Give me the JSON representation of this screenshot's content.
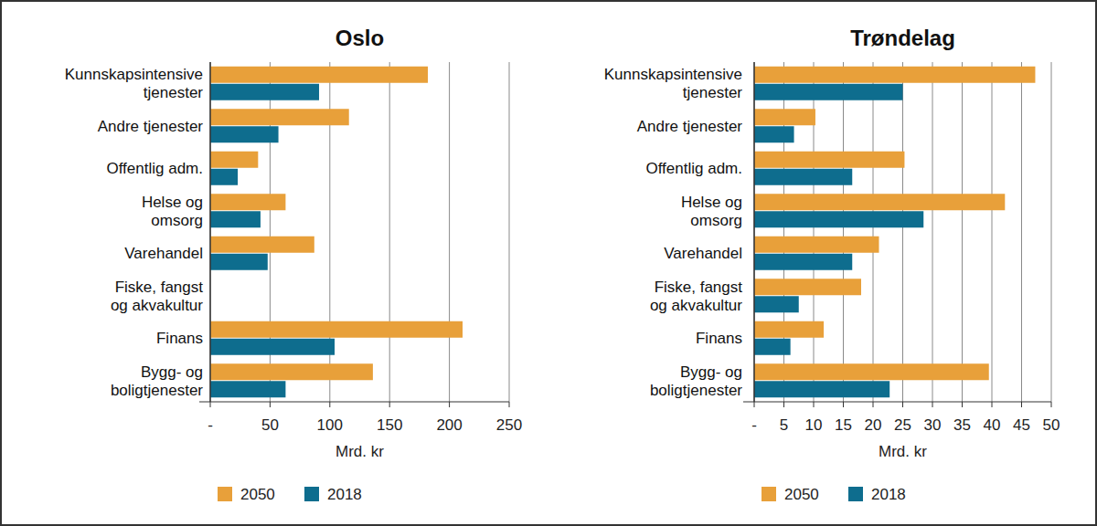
{
  "chart_data": [
    {
      "type": "bar",
      "orientation": "horizontal",
      "title": "Oslo",
      "x_label": "Mrd. kr",
      "categories": [
        "Kunnskapsintensive\ntjenester",
        "Andre tjenester",
        "Offentlig adm.",
        "Helse og\nomsorg",
        "Varehandel",
        "Fiske, fangst\nog akvakultur",
        "Finans",
        "Bygg- og\nboligtjenester"
      ],
      "series": [
        {
          "name": "2050",
          "color": "#e8a03a",
          "values": [
            182,
            116,
            40,
            63,
            87,
            0,
            211,
            136
          ]
        },
        {
          "name": "2018",
          "color": "#0e6d8e",
          "values": [
            91,
            57,
            23,
            42,
            48,
            0,
            104,
            63
          ]
        }
      ],
      "xlim": [
        0,
        250
      ],
      "xticks": [
        {
          "value": 0,
          "label": "-"
        },
        50,
        100,
        150,
        200,
        250
      ],
      "grid": true,
      "legend": "bottom"
    },
    {
      "type": "bar",
      "orientation": "horizontal",
      "title": "Trøndelag",
      "x_label": "Mrd. kr",
      "categories": [
        "Kunnskapsintensive\ntjenester",
        "Andre tjenester",
        "Offentlig adm.",
        "Helse og\nomsorg",
        "Varehandel",
        "Fiske, fangst\nog akvakultur",
        "Finans",
        "Bygg- og\nboligtjenester"
      ],
      "series": [
        {
          "name": "2050",
          "color": "#e8a03a",
          "values": [
            47.3,
            10.3,
            25.3,
            42.2,
            21,
            18,
            11.7,
            39.5
          ]
        },
        {
          "name": "2018",
          "color": "#0e6d8e",
          "values": [
            25,
            6.7,
            16.5,
            28.5,
            16.5,
            7.5,
            6.1,
            22.8
          ]
        }
      ],
      "xlim": [
        0,
        50
      ],
      "xticks": [
        {
          "value": 0,
          "label": "-"
        },
        5,
        10,
        15,
        20,
        25,
        30,
        35,
        40,
        45,
        50
      ],
      "grid": true,
      "legend": "bottom"
    }
  ]
}
